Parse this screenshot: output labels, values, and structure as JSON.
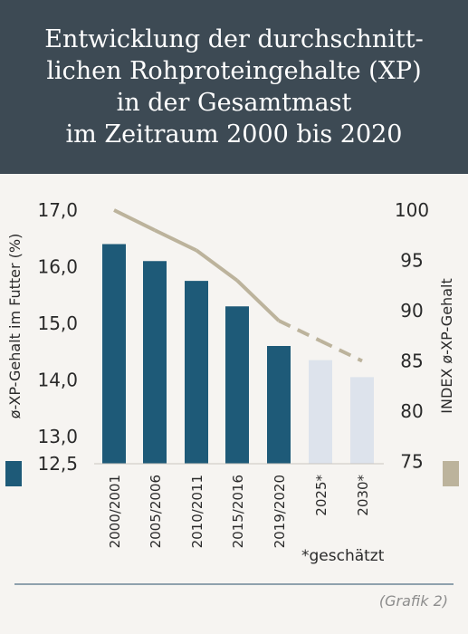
{
  "title": {
    "lines": [
      "Entwicklung der durchschnitt-",
      "lichen Rohproteingehalte (XP)",
      "in der Gesamtmast",
      "im Zeitraum 2000 bis 2020"
    ]
  },
  "footnote": "*geschätzt",
  "source": "(Grafik 2)",
  "colors": {
    "header_bg": "#3d4a54",
    "bar_actual": "#1e5a78",
    "bar_estimated": "#dde3ec",
    "index_line": "#bcb39c",
    "legend_left": "#1e5a78",
    "legend_right": "#bcb39c"
  },
  "chart_data": {
    "type": "bar",
    "categories": [
      "2000/2001",
      "2005/2006",
      "2010/2011",
      "2015/2016",
      "2019/2020",
      "2025*",
      "2030*"
    ],
    "estimated": [
      false,
      false,
      false,
      false,
      false,
      true,
      true
    ],
    "series": [
      {
        "axis": "left",
        "type": "bar",
        "values": [
          16.4,
          16.1,
          15.75,
          15.3,
          14.6,
          14.35,
          14.05
        ]
      },
      {
        "axis": "right",
        "type": "line",
        "values": [
          100,
          98,
          96,
          93,
          89,
          87,
          85
        ],
        "dashed_from_index": 4
      }
    ],
    "ylabel": "ø-XP-Gehalt im Futter (%)",
    "ylabel_right": "INDEX ø-XP-Gehalt",
    "left_ticks": [
      "17,0",
      "16,0",
      "15,0",
      "14,0",
      "13,0",
      "12,5"
    ],
    "left_tick_values": [
      17.0,
      16.0,
      15.0,
      14.0,
      13.0,
      12.5
    ],
    "right_ticks": [
      "100",
      "95",
      "90",
      "85",
      "80",
      "75"
    ],
    "right_tick_values": [
      100,
      95,
      90,
      85,
      80,
      75
    ],
    "grid": false,
    "legend": "bottom"
  }
}
